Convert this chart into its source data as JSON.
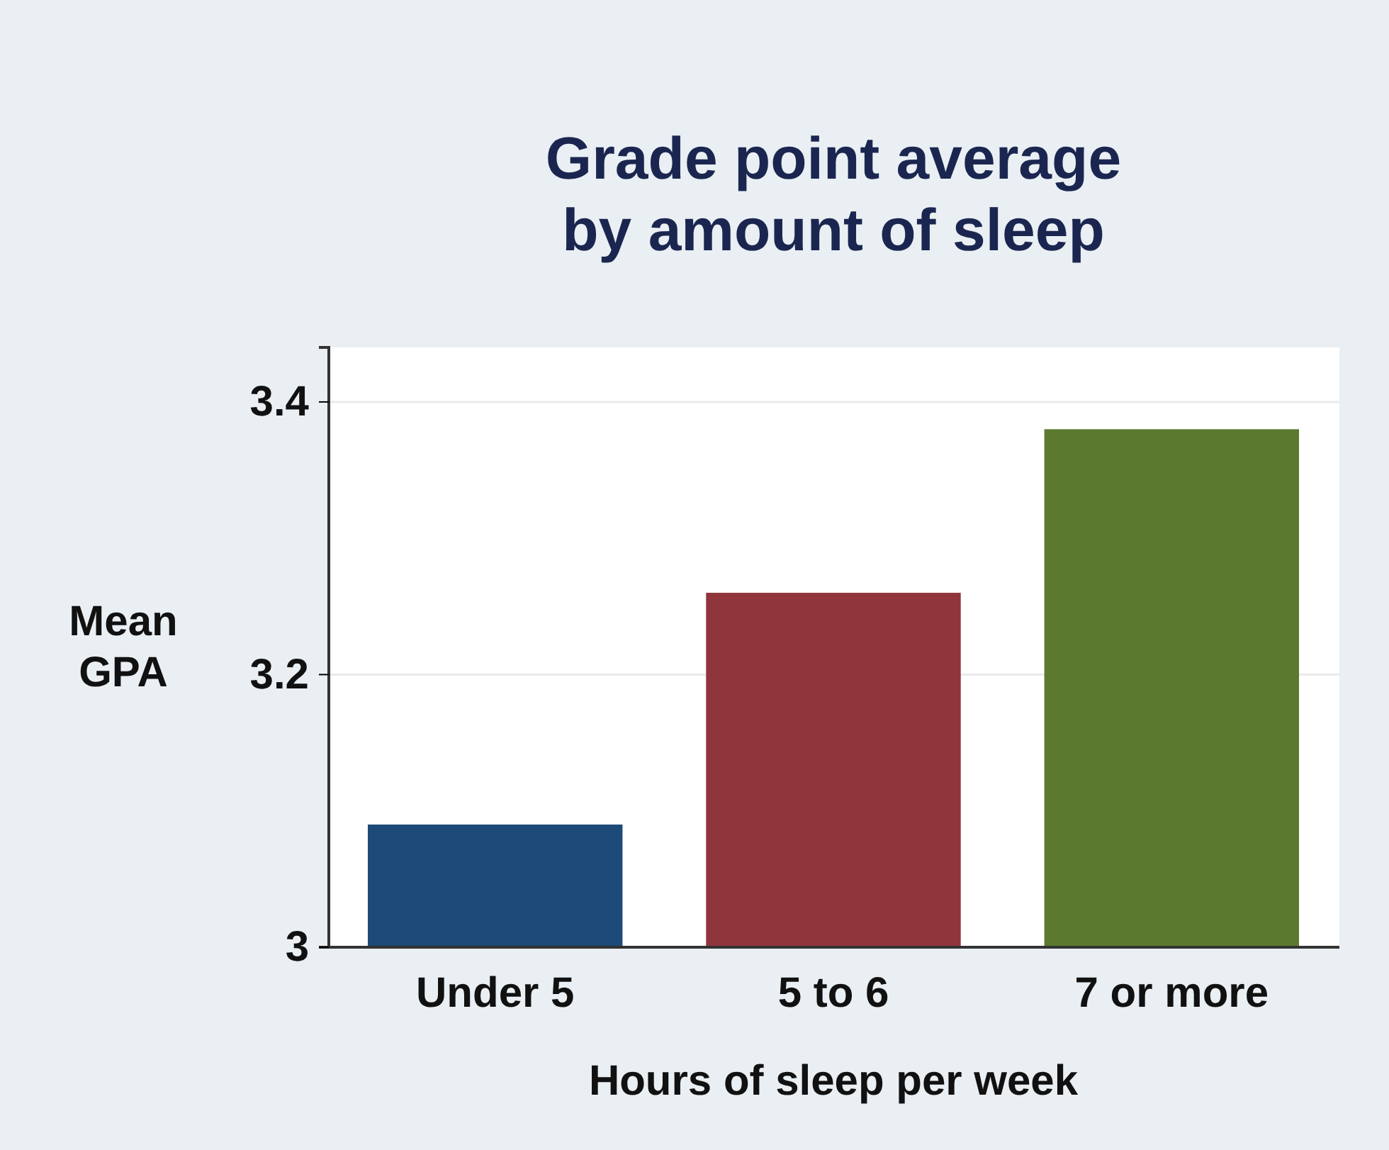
{
  "chart_data": {
    "type": "bar",
    "title": "Grade point average by amount of sleep",
    "xlabel": "Hours of sleep per week",
    "ylabel": "Mean GPA",
    "categories": [
      "Under 5",
      "5 to 6",
      "7 or more"
    ],
    "values": [
      3.09,
      3.26,
      3.38
    ],
    "colors": [
      "#1d4a78",
      "#90353c",
      "#5b7a30"
    ],
    "ylim": [
      3,
      3.44
    ],
    "yticks": [
      3,
      3.2,
      3.4
    ],
    "grid": "y"
  }
}
